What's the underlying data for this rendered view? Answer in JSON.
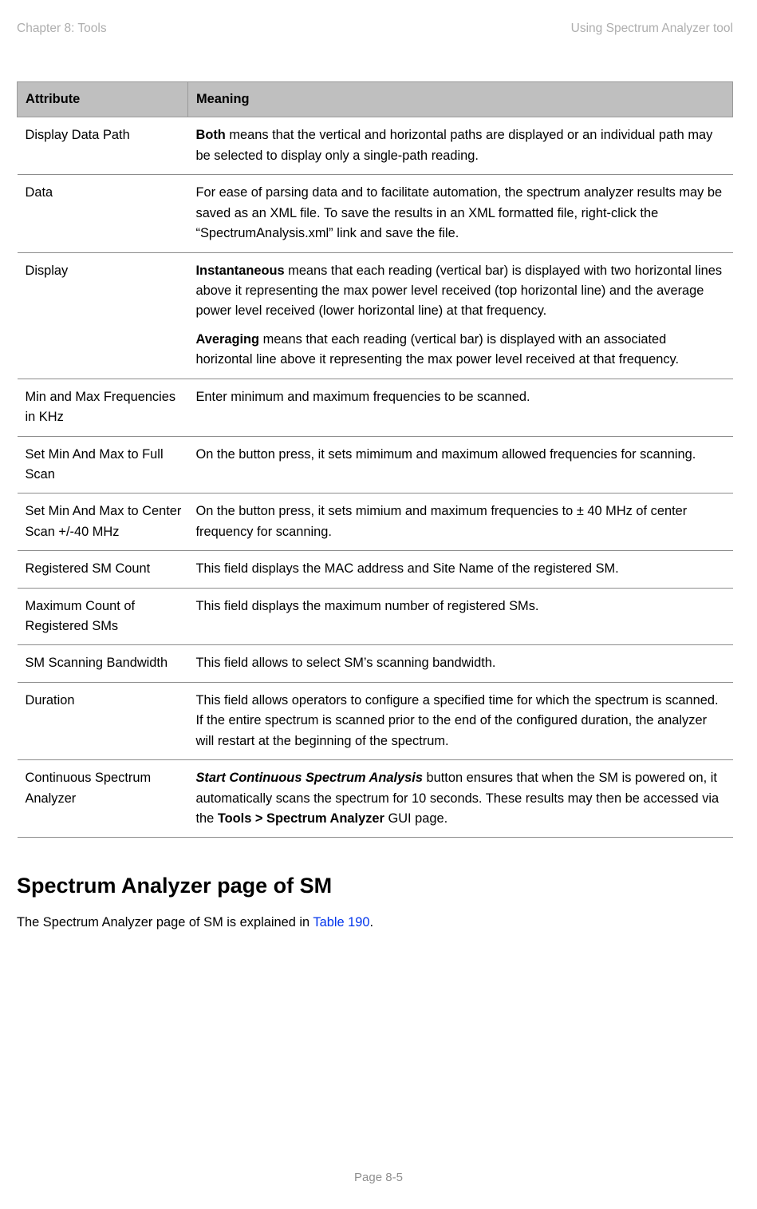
{
  "header": {
    "left": "Chapter 8:  Tools",
    "right": "Using Spectrum Analyzer tool"
  },
  "table": {
    "columns": [
      "Attribute",
      "Meaning"
    ],
    "header_bg": "#bfbfbf",
    "border_color": "#8c8c8c",
    "rows": [
      {
        "attr": "Display Data Path",
        "meaning_parts": [
          {
            "bold": "Both",
            "rest": " means that the vertical and horizontal paths are displayed or an individual path may be selected to display only a single-path reading."
          }
        ]
      },
      {
        "attr": "Data",
        "meaning_parts": [
          {
            "plain": "For ease of parsing data and to facilitate automation, the spectrum analyzer results may be saved as an XML file. To save the results in an XML formatted file, right-click the “SpectrumAnalysis.xml” link and save the file."
          }
        ]
      },
      {
        "attr": "Display",
        "meaning_parts": [
          {
            "bold": "Instantaneous",
            "rest": " means that each reading (vertical bar) is displayed with two horizontal lines above it representing the max power level received (top horizontal line) and the average power level received (lower horizontal line) at that frequency."
          },
          {
            "bold": "Averaging",
            "rest": " means that each reading (vertical bar) is displayed with an associated horizontal line above it representing the max power level received at that frequency."
          }
        ]
      },
      {
        "attr": "Min and Max Frequencies in KHz",
        "meaning_parts": [
          {
            "plain": "Enter minimum and maximum frequencies to be scanned."
          }
        ]
      },
      {
        "attr": "Set Min And Max to Full Scan",
        "meaning_parts": [
          {
            "plain": "On the button press, it sets mimimum and maximum allowed frequencies for scanning."
          }
        ]
      },
      {
        "attr": "Set Min And Max to Center Scan +/-40 MHz",
        "meaning_parts": [
          {
            "plain": "On the button press, it sets mimium and maximum frequencies to ± 40 MHz of center frequency for scanning."
          }
        ]
      },
      {
        "attr": "Registered SM Count",
        "meaning_parts": [
          {
            "plain": "This field displays the MAC address and Site Name of the registered SM."
          }
        ]
      },
      {
        "attr": "Maximum Count of Registered SMs",
        "meaning_parts": [
          {
            "plain": "This field displays the maximum number of registered SMs."
          }
        ]
      },
      {
        "attr": "SM Scanning Bandwidth",
        "meaning_parts": [
          {
            "plain": "This field allows to select SM’s scanning bandwidth."
          }
        ]
      },
      {
        "attr": "Duration",
        "meaning_parts": [
          {
            "plain": "This field allows operators to configure a specified time for which the spectrum is scanned. If the entire spectrum is scanned prior to the end of the configured duration, the analyzer will restart at the beginning of the spectrum."
          }
        ]
      },
      {
        "attr": "Continuous Spectrum Analyzer",
        "meaning_parts": [
          {
            "bolditalic": "Start Continuous Spectrum Analysis",
            "mid": " button ensures that when the SM is powered on, it automatically scans the spectrum for 10 seconds. These results may then be accessed via the ",
            "bold2": "Tools > Spectrum Analyzer",
            "tail": " GUI page."
          }
        ]
      }
    ]
  },
  "section": {
    "title": "Spectrum Analyzer page of SM",
    "intro_pre": "The Spectrum Analyzer page of SM is explained in ",
    "intro_link": "Table 190",
    "intro_post": "."
  },
  "footer": {
    "page": "Page 8-5"
  },
  "colors": {
    "header_text": "#aeaeae",
    "link": "#0034ec",
    "footer_text": "#8f8f8f",
    "body_text": "#000000"
  }
}
